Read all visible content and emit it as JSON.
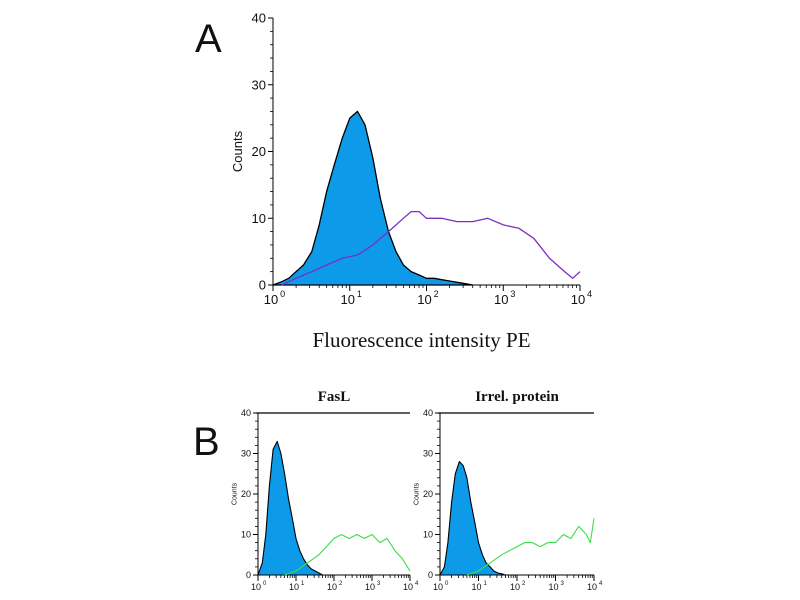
{
  "colors": {
    "filled": "#0d9ae8",
    "filled_outline": "#000000",
    "panel_a_open": "#7b2fc4",
    "panel_b_open": "#3ddc4a",
    "axis": "#000000"
  },
  "chart_data": [
    {
      "id": "A",
      "panel_label": "A",
      "type": "area",
      "subtitle": "",
      "xlabel": "Fluorescence intensity PE",
      "ylabel": "Counts",
      "xscale": "log",
      "xlim": [
        1,
        10000
      ],
      "ylim": [
        0,
        40
      ],
      "y_ticks": [
        0,
        10,
        20,
        30,
        40
      ],
      "x_ticks": [
        {
          "value": 1,
          "base": "10",
          "exp": "0"
        },
        {
          "value": 10,
          "base": "10",
          "exp": "1"
        },
        {
          "value": 100,
          "base": "10",
          "exp": "2"
        },
        {
          "value": 1000,
          "base": "10",
          "exp": "3"
        },
        {
          "value": 10000,
          "base": "10",
          "exp": "4"
        }
      ],
      "series": [
        {
          "style": "filled",
          "x": [
            1,
            1.3,
            1.6,
            2,
            2.5,
            3.2,
            4,
            5,
            6.3,
            8,
            10,
            12.6,
            15.8,
            20,
            25,
            32,
            40,
            50,
            63,
            80,
            100,
            126,
            158,
            200,
            250,
            320,
            400
          ],
          "y": [
            0,
            0.5,
            1,
            2,
            3,
            5,
            9,
            14,
            18,
            22,
            25,
            26,
            24,
            19,
            13,
            8,
            5,
            3,
            2,
            1.5,
            1,
            1,
            0.8,
            0.6,
            0.4,
            0.2,
            0
          ]
        },
        {
          "style": "line",
          "x": [
            1.3,
            2,
            3.2,
            5,
            8,
            12.6,
            20,
            32,
            50,
            63,
            80,
            100,
            158,
            250,
            400,
            630,
            1000,
            1600,
            2500,
            4000,
            6300,
            8000,
            10000
          ],
          "y": [
            0,
            1,
            2,
            3,
            4,
            4.5,
            6,
            8,
            10,
            11,
            11,
            10,
            10,
            9.5,
            9.5,
            10,
            9,
            8.5,
            7,
            4,
            2,
            1,
            2
          ]
        }
      ]
    },
    {
      "id": "B1",
      "panel_label": "B",
      "type": "area",
      "subtitle": "FasL",
      "xlabel": "",
      "ylabel": "Counts",
      "xscale": "log",
      "xlim": [
        1,
        10000
      ],
      "ylim": [
        0,
        40
      ],
      "y_ticks": [
        0,
        10,
        20,
        30,
        40
      ],
      "x_ticks": [
        {
          "value": 1,
          "base": "10",
          "exp": "0"
        },
        {
          "value": 10,
          "base": "10",
          "exp": "1"
        },
        {
          "value": 100,
          "base": "10",
          "exp": "2"
        },
        {
          "value": 1000,
          "base": "10",
          "exp": "3"
        },
        {
          "value": 10000,
          "base": "10",
          "exp": "4"
        }
      ],
      "series": [
        {
          "style": "filled",
          "x": [
            1,
            1.3,
            1.6,
            2,
            2.5,
            3.2,
            4,
            5,
            6.3,
            8,
            10,
            12.6,
            15.8,
            20,
            25,
            32,
            40,
            50
          ],
          "y": [
            0,
            3,
            10,
            22,
            31,
            33,
            30,
            25,
            19,
            14,
            9,
            6,
            4,
            2.5,
            1.5,
            1,
            0.5,
            0
          ]
        },
        {
          "style": "line",
          "x": [
            5,
            10,
            20,
            40,
            63,
            100,
            158,
            250,
            400,
            630,
            1000,
            1600,
            2500,
            4000,
            6300,
            10000
          ],
          "y": [
            0,
            1,
            3,
            5,
            7,
            9,
            10,
            9,
            10,
            9,
            10,
            8,
            9,
            6,
            4,
            1
          ]
        }
      ]
    },
    {
      "id": "B2",
      "panel_label": "",
      "type": "area",
      "subtitle": "Irrel. protein",
      "xlabel": "",
      "ylabel": "Counts",
      "xscale": "log",
      "xlim": [
        1,
        10000
      ],
      "ylim": [
        0,
        40
      ],
      "y_ticks": [
        0,
        10,
        20,
        30,
        40
      ],
      "x_ticks": [
        {
          "value": 1,
          "base": "10",
          "exp": "0"
        },
        {
          "value": 10,
          "base": "10",
          "exp": "1"
        },
        {
          "value": 100,
          "base": "10",
          "exp": "2"
        },
        {
          "value": 1000,
          "base": "10",
          "exp": "3"
        },
        {
          "value": 10000,
          "base": "10",
          "exp": "4"
        }
      ],
      "series": [
        {
          "style": "filled",
          "x": [
            1,
            1.3,
            1.6,
            2,
            2.5,
            3.2,
            4,
            5,
            6.3,
            8,
            10,
            12.6,
            15.8,
            20,
            25,
            32,
            40,
            50
          ],
          "y": [
            0,
            2,
            8,
            18,
            25,
            28,
            27,
            24,
            18,
            13,
            8,
            5,
            3,
            2,
            1,
            0.5,
            0.3,
            0
          ]
        },
        {
          "style": "line",
          "x": [
            5,
            10,
            20,
            40,
            63,
            100,
            158,
            250,
            400,
            630,
            1000,
            1600,
            2500,
            4000,
            6300,
            8000,
            10000
          ],
          "y": [
            0,
            1,
            3,
            5,
            6,
            7,
            8,
            8,
            7,
            8,
            8,
            10,
            9,
            12,
            10,
            8,
            14
          ]
        }
      ]
    }
  ]
}
